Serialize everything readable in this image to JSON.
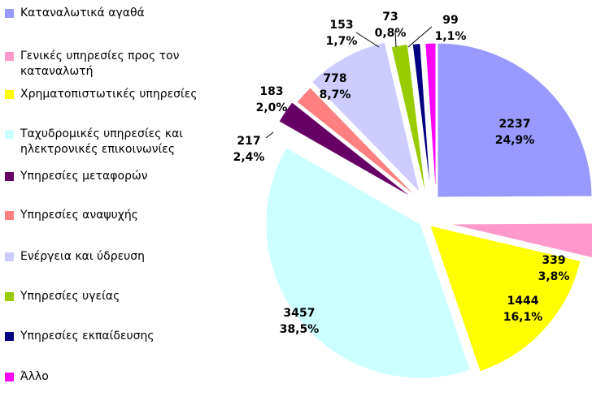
{
  "chart_data": {
    "type": "pie",
    "categories": [
      "Καταναλωτικά αγαθά",
      "Γενικές υπηρεσίες προς τον καταναλωτή",
      "Χρηματοπιστωτικές υπηρεσίες",
      "Ταχυδρομικές υπηρεσίες και ηλεκτρονικές επικοινωνίες",
      "Υπηρεσίες μεταφορών",
      "Υπηρεσίες αναψυχής",
      "Ενέργεια και ύδρευση",
      "Υπηρεσίες υγείας",
      "Υπηρεσίες εκπαίδευσης",
      "Άλλο"
    ],
    "legend_lines": [
      [
        "Καταναλωτικά αγαθά"
      ],
      [
        "Γενικές υπηρεσίες προς τον",
        "καταναλωτή"
      ],
      [
        "Χρηματοπιστωτικές υπηρεσίες"
      ],
      [
        "Ταχυδρομικές υπηρεσίες και",
        "ηλεκτρονικές επικοινωνίες"
      ],
      [
        "Υπηρεσίες μεταφορών"
      ],
      [
        "Υπηρεσίες αναψυχής"
      ],
      [
        "Ενέργεια και ύδρευση"
      ],
      [
        "Υπηρεσίες υγείας"
      ],
      [
        "Υπηρεσίες εκπαίδευσης"
      ],
      [
        "Άλλο"
      ]
    ],
    "values": [
      2237,
      339,
      1444,
      3457,
      217,
      183,
      778,
      153,
      73,
      99
    ],
    "percent_labels": [
      "24,9%",
      "3,8%",
      "16,1%",
      "38,5%",
      "2,4%",
      "2,0%",
      "8,7%",
      "1,7%",
      "0,8%",
      "1,1%"
    ],
    "colors": [
      "#9999ff",
      "#ff99cc",
      "#ffff00",
      "#ccffff",
      "#660066",
      "#ff8080",
      "#ccccff",
      "#99cc00",
      "#000080",
      "#ff00ff"
    ],
    "legend_placement": "left",
    "exploded": true,
    "start_angle": "12 o'clock",
    "direction": "clockwise"
  }
}
